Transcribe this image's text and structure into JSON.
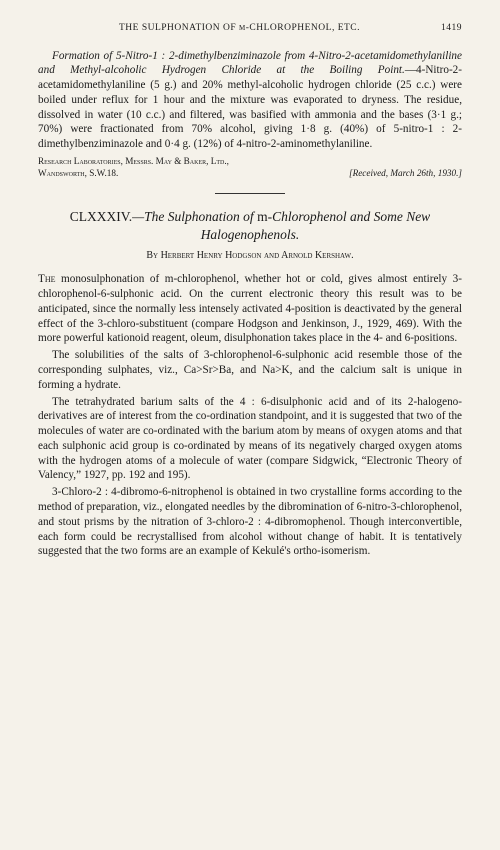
{
  "runningHead": {
    "text": "THE SULPHONATION OF m-CHLOROPHENOL, ETC.",
    "pageNumber": "1419"
  },
  "topSection": {
    "para1_lead": "Formation of 5-Nitro-1 : 2-dimethylbenziminazole from 4-Nitro-2-acetamidomethylaniline and Methyl-alcoholic Hydrogen Chloride at the Boiling Point.",
    "para1_rest": "—4-Nitro-2-acetamidomethylaniline (5 g.) and 20% methyl-alcoholic hydrogen chloride (25 c.c.) were boiled under reflux for 1 hour and the mixture was evaporated to dryness. The residue, dissolved in water (10 c.c.) and filtered, was basified with ammonia and the bases (3·1 g.; 70%) were fractionated from 70% alcohol, giving 1·8 g. (40%) of 5-nitro-1 : 2-dimethylbenziminazole and 0·4 g. (12%) of 4-nitro-2-aminomethylaniline.",
    "affiliation_l1": "Research Laboratories, Messrs. May & Baker, Ltd.,",
    "affiliation_l2": "Wandsworth, S.W.18.",
    "received": "[Received, March 26th, 1930.]"
  },
  "article": {
    "number": "CLXXXIV.",
    "title_a": "—The Sulphonation of ",
    "title_roman": "m",
    "title_b": "-Chlorophenol and Some New Halogenophenols.",
    "byline_by": "By ",
    "author1": "Herbert Henry Hodgson",
    "byline_and": " and ",
    "author2": "Arnold Kershaw.",
    "p1_lead": "The",
    "p1": " monosulphonation of m-chlorophenol, whether hot or cold, gives almost entirely 3-chlorophenol-6-sulphonic acid. On the current electronic theory this result was to be anticipated, since the normally less intensely activated 4-position is deactivated by the general effect of the 3-chloro-substituent (compare Hodgson and Jenkinson, J., 1929, 469). With the more powerful kationoid reagent, oleum, disulphonation takes place in the 4- and 6-positions.",
    "p2": "The solubilities of the salts of 3-chlorophenol-6-sulphonic acid resemble those of the corresponding sulphates, viz., Ca>Sr>Ba, and Na>K, and the calcium salt is unique in forming a hydrate.",
    "p3": "The tetrahydrated barium salts of the 4 : 6-disulphonic acid and of its 2-halogeno-derivatives are of interest from the co-ordination standpoint, and it is suggested that two of the molecules of water are co-ordinated with the barium atom by means of oxygen atoms and that each sulphonic acid group is co-ordinated by means of its negatively charged oxygen atoms with the hydrogen atoms of a molecule of water (compare Sidgwick, “Electronic Theory of Valency,” 1927, pp. 192 and 195).",
    "p4": "3-Chloro-2 : 4-dibromo-6-nitrophenol is obtained in two crystalline forms according to the method of preparation, viz., elongated needles by the dibromination of 6-nitro-3-chlorophenol, and stout prisms by the nitration of 3-chloro-2 : 4-dibromophenol. Though interconvertible, each form could be recrystallised from alcohol without change of habit. It is tentatively suggested that the two forms are an example of Kekulé's ortho-isomerism."
  }
}
